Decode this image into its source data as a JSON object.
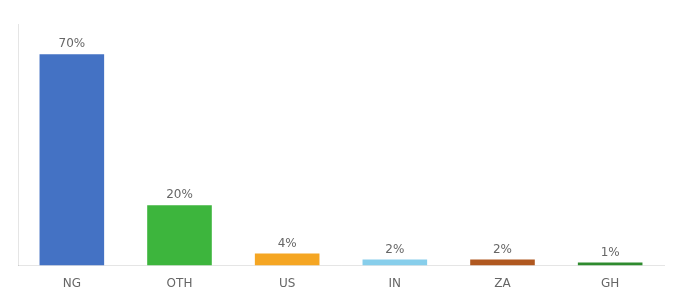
{
  "chart_data": {
    "type": "bar",
    "categories": [
      "NG",
      "OTH",
      "US",
      "IN",
      "ZA",
      "GH"
    ],
    "values": [
      70,
      20,
      4,
      2,
      2,
      1
    ],
    "value_labels": [
      "70%",
      "20%",
      "4%",
      "2%",
      "2%",
      "1%"
    ],
    "data_labels": true,
    "colors": [
      "#4472c4",
      "#3db53d",
      "#f5a623",
      "#87ceeb",
      "#b05820",
      "#2e8b2e"
    ],
    "ylim": [
      0,
      80
    ],
    "grid": false,
    "tick_labels": "x"
  }
}
